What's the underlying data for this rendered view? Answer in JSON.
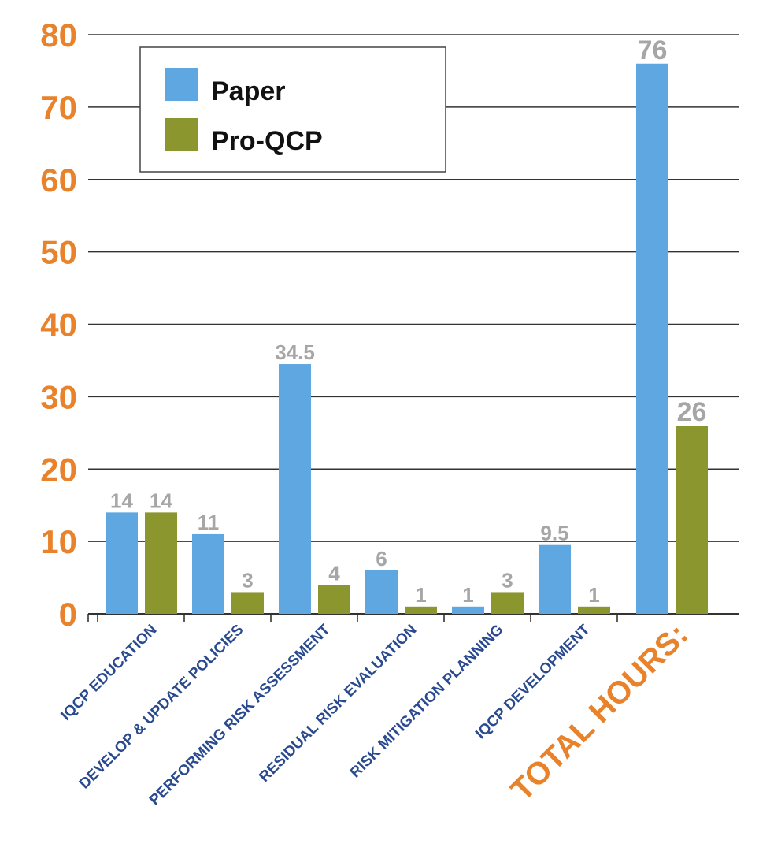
{
  "chart_data": {
    "type": "bar",
    "title": "",
    "xlabel": "",
    "ylabel": "",
    "ylim": [
      0,
      80
    ],
    "yticks": [
      0,
      10,
      20,
      30,
      40,
      50,
      60,
      70,
      80
    ],
    "grid": true,
    "legend_position": "top-left",
    "categories": [
      "IQCP EDUCATION",
      "DEVELOP & UPDATE POLICIES",
      "PERFORMING RISK ASSESSMENT",
      "RESIDUAL RISK EVALUATION",
      "RISK MITIGATION PLANNING",
      "IQCP DEVELOPMENT",
      "TOTAL HOURS:"
    ],
    "series": [
      {
        "name": "Paper",
        "color": "#5ea7e0",
        "values": [
          14,
          11,
          34.5,
          6,
          1,
          9.5,
          76
        ],
        "labels": [
          "14",
          "11",
          "34.5",
          "6",
          "1",
          "9.5",
          "76"
        ]
      },
      {
        "name": "Pro-QCP",
        "color": "#8b962f",
        "values": [
          14,
          3,
          4,
          1,
          3,
          1,
          26
        ],
        "labels": [
          "14",
          "3",
          "4",
          "1",
          "3",
          "1",
          "26"
        ]
      }
    ],
    "colors": {
      "ytick": "#e8832b",
      "xtick": "#2a4a8f",
      "total_label": "#e8832b",
      "data_label": "#a6a6a6"
    }
  }
}
